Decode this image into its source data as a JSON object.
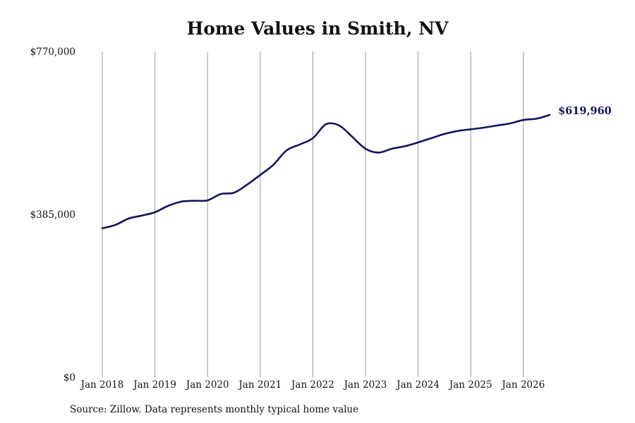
{
  "chart_data": {
    "type": "line",
    "title": "Home Values in Smith, NV",
    "xlabel": "",
    "ylabel": "",
    "ylim": [
      0,
      770000
    ],
    "y_ticks": [
      0,
      385000,
      770000
    ],
    "y_tick_labels": [
      "$0",
      "$385,000",
      "$770,000"
    ],
    "x_ticks": [
      "2018-01",
      "2019-01",
      "2020-01",
      "2021-01",
      "2022-01",
      "2023-01",
      "2024-01",
      "2025-01",
      "2026-01"
    ],
    "x_tick_labels": [
      "Jan 2018",
      "Jan 2019",
      "Jan 2020",
      "Jan 2021",
      "Jan 2022",
      "Jan 2023",
      "Jan 2024",
      "Jan 2025",
      "Jan 2026"
    ],
    "grid": "vertical",
    "line_color": "#13125e",
    "end_label": "$619,960",
    "series": [
      {
        "x": [
          "2018-01",
          "2018-04",
          "2018-07",
          "2018-10",
          "2019-01",
          "2019-04",
          "2019-07",
          "2019-10",
          "2020-01",
          "2020-04",
          "2020-07",
          "2020-10",
          "2021-01",
          "2021-04",
          "2021-07",
          "2021-10",
          "2022-01",
          "2022-04",
          "2022-07",
          "2022-10",
          "2023-01",
          "2023-04",
          "2023-07",
          "2023-10",
          "2024-01",
          "2024-04",
          "2024-07",
          "2024-10",
          "2025-01",
          "2025-04",
          "2025-07",
          "2025-10",
          "2026-01",
          "2026-04",
          "2026-07"
        ],
        "values": [
          352000,
          360000,
          375000,
          382000,
          390000,
          405000,
          415000,
          417000,
          418000,
          433000,
          436000,
          455000,
          478000,
          502000,
          536000,
          550000,
          565000,
          598000,
          595000,
          568000,
          540000,
          531000,
          540000,
          546000,
          555000,
          565000,
          575000,
          582000,
          586000,
          590000,
          595000,
          600000,
          608000,
          611000,
          619960
        ]
      }
    ]
  },
  "source_text": "Source: Zillow. Data represents monthly typical home value"
}
